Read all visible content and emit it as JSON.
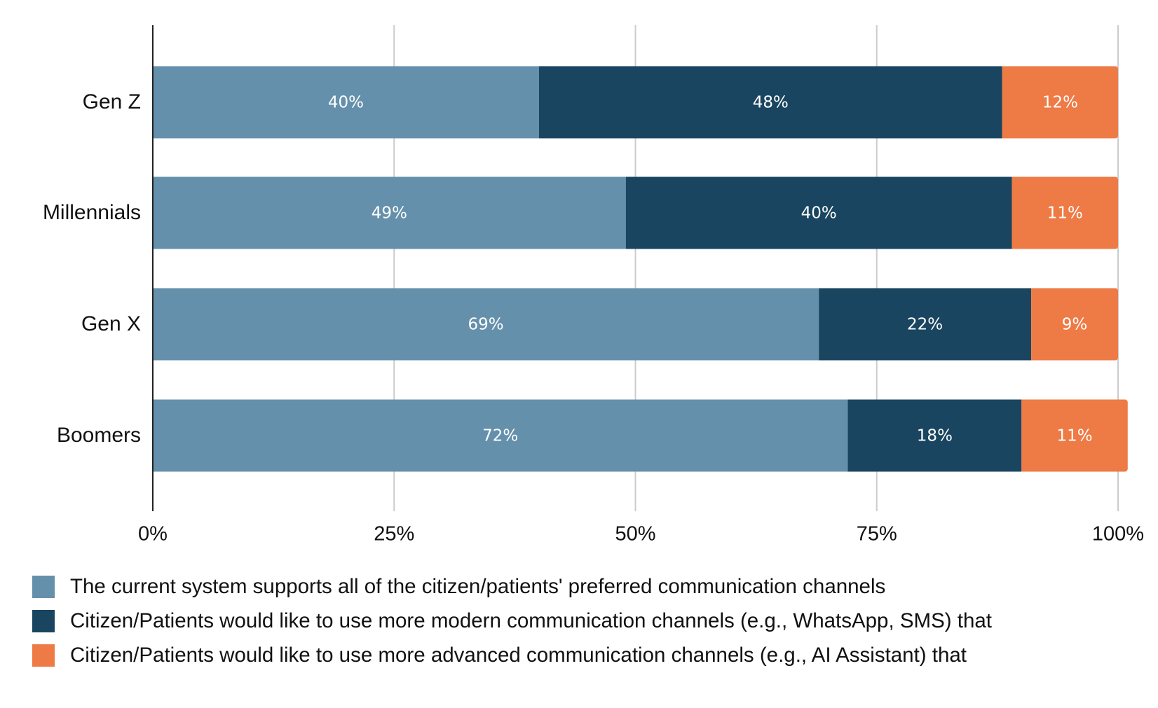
{
  "chart_data": {
    "type": "bar",
    "orientation": "horizontal",
    "stacked": true,
    "title": "",
    "xlabel": "",
    "ylabel": "",
    "xlim": [
      0,
      100
    ],
    "x_ticks": [
      0,
      25,
      50,
      75,
      100
    ],
    "x_tick_labels": [
      "0%",
      "25%",
      "50%",
      "75%",
      "100%"
    ],
    "categories": [
      "Gen Z",
      "Millennials",
      "Gen X",
      "Boomers"
    ],
    "series": [
      {
        "name": "The current system supports all of the citizen/patients' preferred communication channels",
        "color": "#6590ab",
        "values": [
          40,
          49,
          69,
          72
        ],
        "labels": [
          "40%",
          "49%",
          "69%",
          "72%"
        ]
      },
      {
        "name": "Citizen/Patients would like to use more modern communication channels (e.g., WhatsApp, SMS) that",
        "color": "#1a4560",
        "values": [
          48,
          40,
          22,
          18
        ],
        "labels": [
          "48%",
          "40%",
          "22%",
          "18%"
        ]
      },
      {
        "name": "Citizen/Patients would like to use more advanced communication channels (e.g., AI Assistant) that",
        "color": "#ee7a45",
        "values": [
          12,
          11,
          9,
          11
        ],
        "labels": [
          "12%",
          "11%",
          "9%",
          "11%"
        ]
      }
    ],
    "grid": true,
    "legend_position": "bottom-left",
    "data_label_color": "#ffffff",
    "grid_color": "#cccccc",
    "axis_color": "#222222"
  }
}
